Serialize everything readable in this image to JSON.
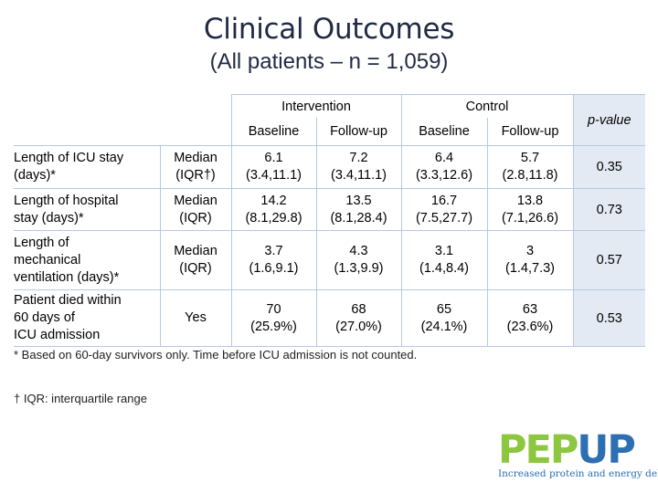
{
  "slide": {
    "title": "Clinical Outcomes",
    "subtitle": "(All patients – n = 1,059)"
  },
  "table": {
    "group_headers": {
      "intervention": "Intervention",
      "control": "Control",
      "pvalue": "p-value"
    },
    "sub_headers": {
      "int_baseline": "Baseline",
      "int_followup": "Follow-up",
      "ctl_baseline": "Baseline",
      "ctl_followup": "Follow-up"
    },
    "rows": [
      {
        "outcome_lines": [
          "Length of ICU stay",
          "(days)*"
        ],
        "stat_lines": [
          "Median",
          "(IQR†)"
        ],
        "int_baseline": [
          "6.1",
          "(3.4,11.1)"
        ],
        "int_followup": [
          "7.2",
          "(3.4,11.1)"
        ],
        "ctl_baseline": [
          "6.4",
          "(3.3,12.6)"
        ],
        "ctl_followup": [
          "5.7",
          "(2.8,11.8)"
        ],
        "pvalue": "0.35"
      },
      {
        "outcome_lines": [
          "Length of hospital",
          "stay (days)*"
        ],
        "stat_lines": [
          "Median",
          "(IQR)"
        ],
        "int_baseline": [
          "14.2",
          "(8.1,29.8)"
        ],
        "int_followup": [
          "13.5",
          "(8.1,28.4)"
        ],
        "ctl_baseline": [
          "16.7",
          "(7.5,27.7)"
        ],
        "ctl_followup": [
          "13.8",
          "(7.1,26.6)"
        ],
        "pvalue": "0.73"
      },
      {
        "outcome_lines": [
          "Length of",
          "mechanical",
          "ventilation (days)*"
        ],
        "stat_lines": [
          "Median",
          "(IQR)"
        ],
        "int_baseline": [
          "3.7",
          "(1.6,9.1)"
        ],
        "int_followup": [
          "4.3",
          "(1.3,9.9)"
        ],
        "ctl_baseline": [
          "3.1",
          "(1.4,8.4)"
        ],
        "ctl_followup": [
          "3",
          "(1.4,7.3)"
        ],
        "pvalue": "0.57"
      },
      {
        "outcome_lines": [
          "Patient died within",
          "60 days of",
          "ICU admission"
        ],
        "stat_lines": [
          "Yes"
        ],
        "int_baseline": [
          "70",
          "(25.9%)"
        ],
        "int_followup": [
          "68",
          "(27.0%)"
        ],
        "ctl_baseline": [
          "65",
          "(24.1%)"
        ],
        "ctl_followup": [
          "63",
          "(23.6%)"
        ],
        "pvalue": "0.53"
      }
    ]
  },
  "footnotes": {
    "note1": "* Based on 60-day survivors only. Time before ICU admission is not counted.",
    "note2": "† IQR: interquartile range"
  },
  "logo": {
    "part1": "PEP",
    "part2": "UP",
    "tagline": "Increased protein and energy delivery",
    "color_green": "#8dc63f",
    "color_blue": "#2e6fb3"
  },
  "colors": {
    "title": "#1f2a44",
    "table_border": "#b7c8e0",
    "pvalue_shade": "#e4eaf3"
  }
}
